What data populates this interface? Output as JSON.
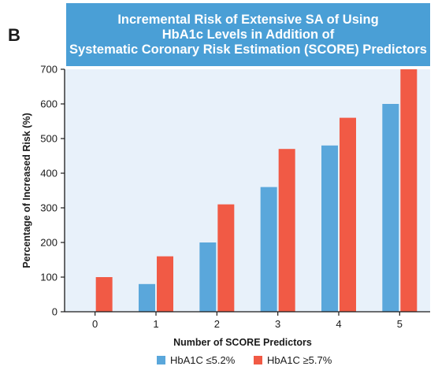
{
  "panel_label": "B",
  "chart_data": {
    "type": "bar",
    "title_lines": [
      "Incremental Risk of Extensive SA of Using",
      "HbA1c Levels in Addition of",
      "Systematic Coronary Risk Estimation (SCORE) Predictors"
    ],
    "xlabel": "Number of SCORE Predictors",
    "ylabel": "Percentage of Increased Risk (%)",
    "categories": [
      "0",
      "1",
      "2",
      "3",
      "4",
      "5"
    ],
    "ylim": [
      0,
      700
    ],
    "yticks": [
      0,
      100,
      200,
      300,
      400,
      500,
      600,
      700
    ],
    "series": [
      {
        "name": "HbA1C ≤5.2%",
        "color": "#5aa7db",
        "values": [
          0,
          80,
          200,
          360,
          480,
          600
        ]
      },
      {
        "name": "HbA1C ≥5.7%",
        "color": "#f15a45",
        "values": [
          100,
          160,
          310,
          470,
          560,
          700
        ]
      }
    ],
    "plot_background": "#e8f1fa",
    "grid": false,
    "legend_position": "bottom"
  }
}
